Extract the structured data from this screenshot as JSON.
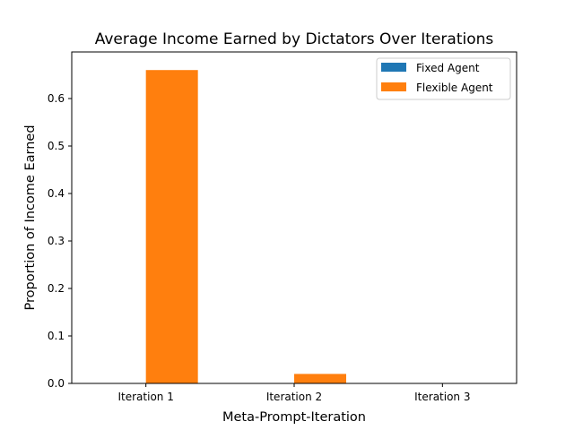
{
  "chart_data": {
    "type": "bar",
    "title": "Average Income Earned by Dictators Over Iterations",
    "xlabel": "Meta-Prompt-Iteration",
    "ylabel": "Proportion of Income Earned",
    "categories": [
      "Iteration 1",
      "Iteration 2",
      "Iteration 3"
    ],
    "series": [
      {
        "name": "Fixed Agent",
        "values": [
          0.0,
          0.0,
          0.0
        ],
        "color": "#1f77b4"
      },
      {
        "name": "Flexible Agent",
        "values": [
          0.66,
          0.02,
          0.0
        ],
        "color": "#ff7f0e"
      }
    ],
    "ylim": [
      0,
      0.69
    ],
    "yticks": [
      "0.0",
      "0.1",
      "0.2",
      "0.3",
      "0.4",
      "0.5",
      "0.6"
    ],
    "grid": false,
    "legend_position": "top-right"
  }
}
